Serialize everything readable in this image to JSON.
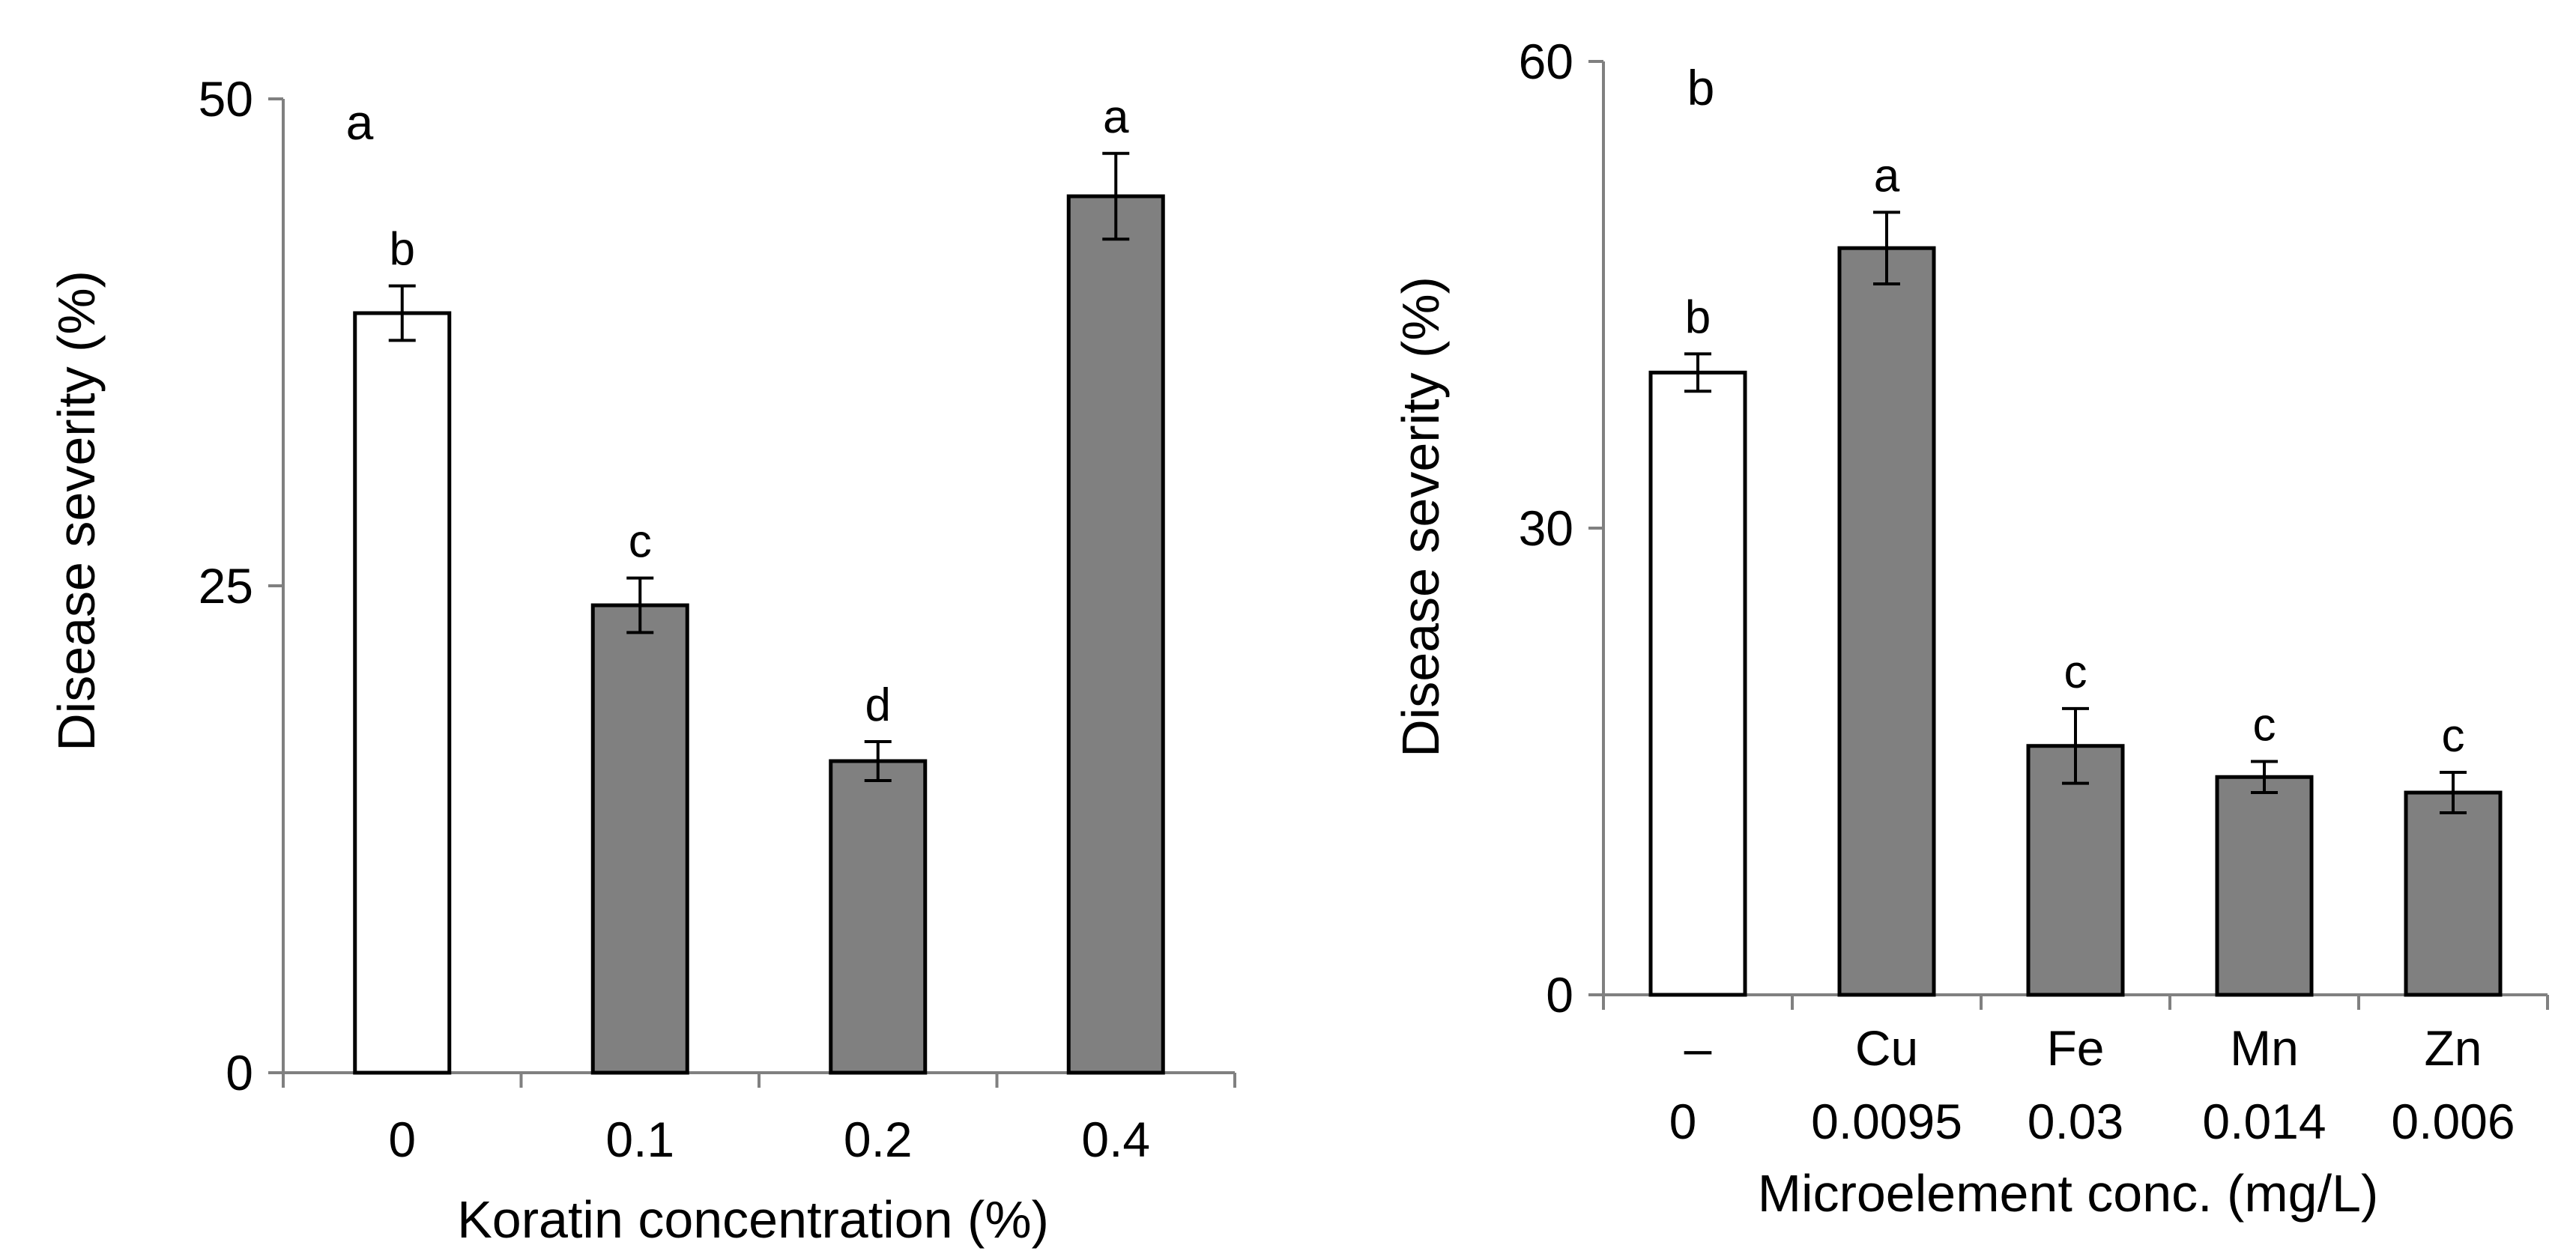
{
  "chart_data": [
    {
      "type": "bar",
      "xlabel": "Koratin concentration (%)",
      "ylabel": "Disease severity (%)",
      "ylim": [
        0,
        50
      ],
      "yticks": [
        0,
        25,
        50
      ],
      "categories": [
        "0",
        "0.1",
        "0.2",
        "0.4"
      ],
      "values": [
        39,
        24,
        16,
        45
      ],
      "errors": [
        1.4,
        1.4,
        1.0,
        2.2
      ],
      "significance": [
        "b",
        "c",
        "d",
        "a"
      ],
      "bar_colors": [
        "#ffffff",
        "#808080",
        "#808080",
        "#808080"
      ],
      "panel_label": "a",
      "grid": false,
      "legend": "none"
    },
    {
      "type": "bar",
      "xlabel": "Microelement conc. (mg/L)",
      "ylabel": "Disease severity (%)",
      "ylim": [
        0,
        60
      ],
      "yticks": [
        0,
        30,
        60
      ],
      "categories": [
        "–",
        "Cu",
        "Fe",
        "Mn",
        "Zn"
      ],
      "categories_secondary": [
        "0",
        "0.0095",
        "0.03",
        "0.014",
        "0.006"
      ],
      "values": [
        40,
        48,
        16,
        14,
        13
      ],
      "errors": [
        1.2,
        2.3,
        2.4,
        1.0,
        1.3
      ],
      "significance": [
        "b",
        "a",
        "c",
        "c",
        "c"
      ],
      "bar_colors": [
        "#ffffff",
        "#808080",
        "#808080",
        "#808080",
        "#808080"
      ],
      "panel_label": "b",
      "grid": false,
      "legend": "none"
    }
  ]
}
